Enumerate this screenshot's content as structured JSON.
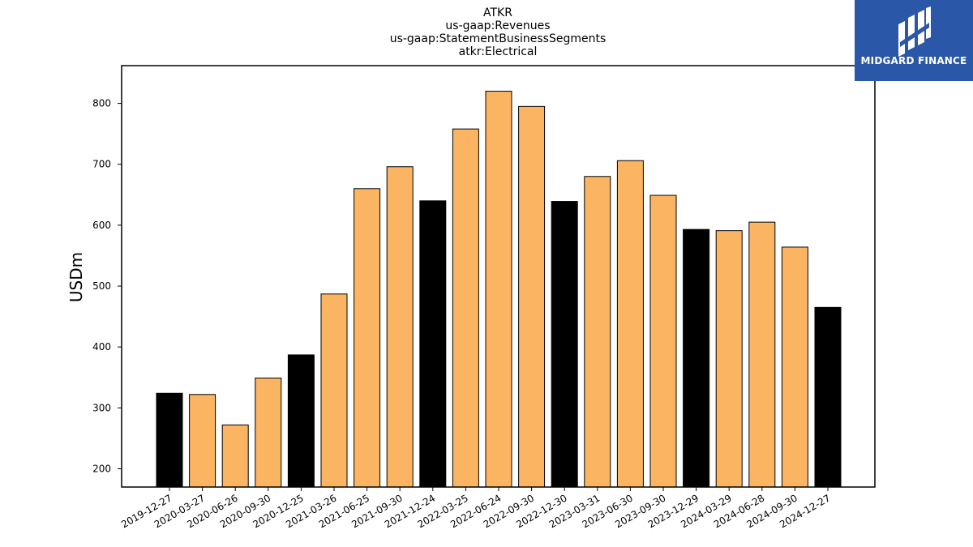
{
  "chart_data": {
    "type": "bar",
    "title_lines": [
      "ATKR",
      "us-gaap:Revenues",
      "us-gaap:StatementBusinessSegments",
      "atkr:Electrical"
    ],
    "ylabel": "USDm",
    "xlabel": "",
    "ylim": [
      170,
      862
    ],
    "yticks": [
      200,
      300,
      400,
      500,
      600,
      700,
      800
    ],
    "categories": [
      "2019-12-27",
      "2020-03-27",
      "2020-06-26",
      "2020-09-30",
      "2020-12-25",
      "2021-03-26",
      "2021-06-25",
      "2021-09-30",
      "2021-12-24",
      "2022-03-25",
      "2022-06-24",
      "2022-09-30",
      "2022-12-30",
      "2023-03-31",
      "2023-06-30",
      "2023-09-30",
      "2023-12-29",
      "2024-03-29",
      "2024-06-28",
      "2024-09-30",
      "2024-12-27"
    ],
    "values": [
      324,
      322,
      272,
      349,
      387,
      487,
      660,
      696,
      640,
      758,
      820,
      795,
      639,
      680,
      706,
      649,
      593,
      591,
      605,
      564,
      465
    ],
    "bar_colors": [
      "#000000",
      "#fbb462",
      "#fbb462",
      "#fbb462",
      "#000000",
      "#fbb462",
      "#fbb462",
      "#fbb462",
      "#000000",
      "#fbb462",
      "#fbb462",
      "#fbb462",
      "#000000",
      "#fbb462",
      "#fbb462",
      "#fbb462",
      "#000000",
      "#fbb462",
      "#fbb462",
      "#fbb462",
      "#000000"
    ],
    "legend": null,
    "grid": false
  },
  "logo": {
    "text": "MIDGARD FINANCE",
    "background": "#2b57a8"
  }
}
